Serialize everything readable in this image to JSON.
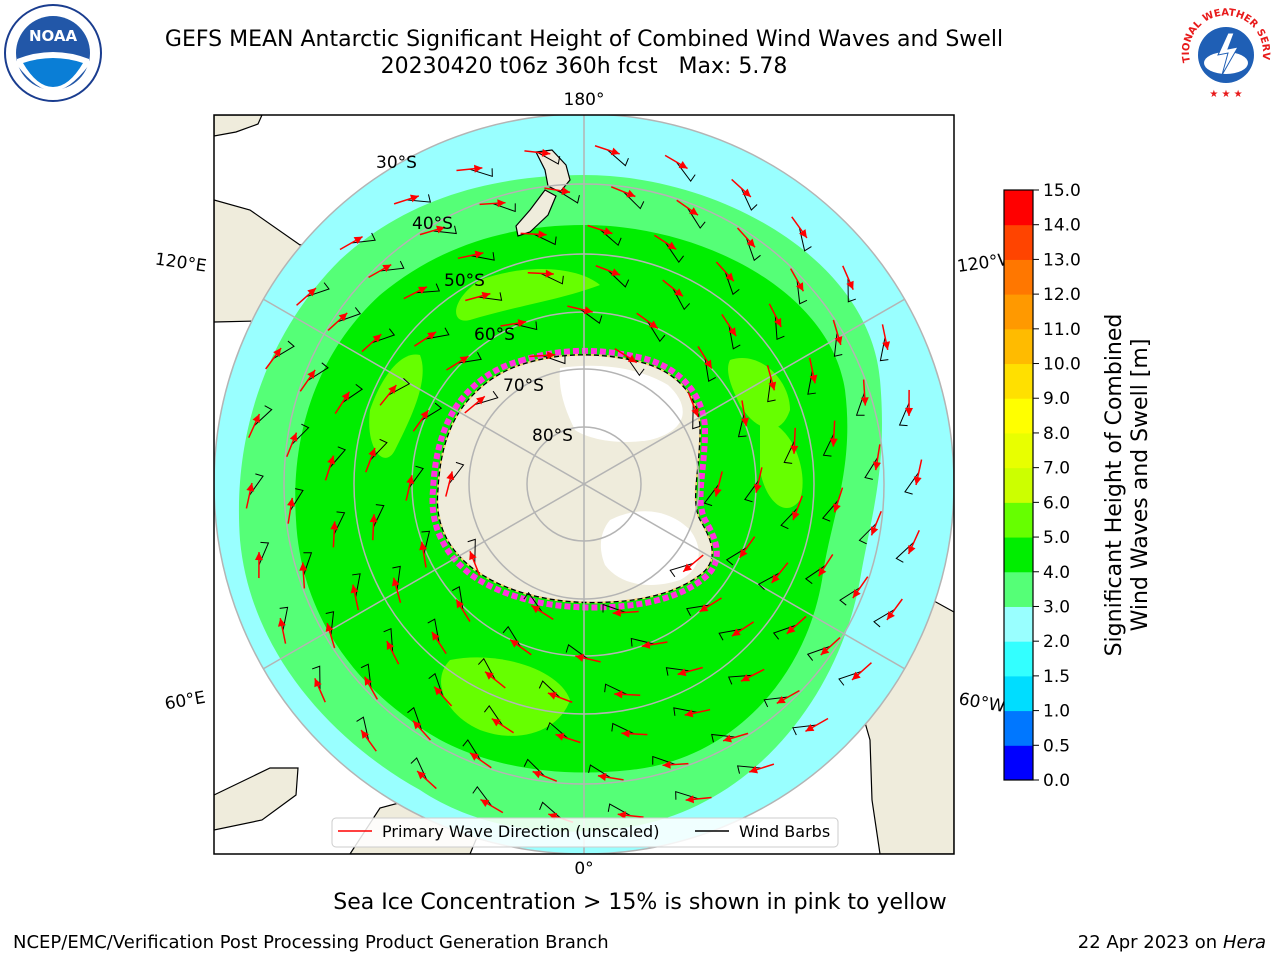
{
  "title_line1": "GEFS MEAN Antarctic Significant Height of Combined Wind Waves and Swell",
  "title_line2": "20230420 t06z 360h fcst   Max: 5.78",
  "map": {
    "meridian_labels": {
      "top": "180°",
      "bottom": "0°",
      "left_upper": "120°E",
      "left_lower": "60°E",
      "right_upper": "120°W",
      "right_lower": "60°W"
    },
    "latitude_labels": [
      "30°S",
      "40°S",
      "50°S",
      "60°S",
      "70°S",
      "80°S"
    ],
    "colors": {
      "land": "#efecdc",
      "ice_pink": "#ff33dd",
      "ice_yellow": "#f2d27a",
      "grid": "#b4b4b4"
    }
  },
  "legend": {
    "primary_wave": "Primary Wave Direction (unscaled)",
    "wind_barbs": "Wind Barbs",
    "primary_wave_color": "#ff0000",
    "wind_barbs_color": "#000000"
  },
  "colorbar": {
    "ticks": [
      "0.0",
      "0.5",
      "1.0",
      "1.5",
      "2.0",
      "3.0",
      "4.0",
      "5.0",
      "6.0",
      "7.0",
      "8.0",
      "9.0",
      "10.0",
      "11.0",
      "12.0",
      "13.0",
      "14.0",
      "15.0"
    ],
    "colors": [
      "#0000ff",
      "#0077ff",
      "#00ddff",
      "#33ffff",
      "#99ffff",
      "#55ff77",
      "#00ee00",
      "#66ff00",
      "#ccff00",
      "#e8ff00",
      "#ffff00",
      "#ffe000",
      "#ffbb00",
      "#ff9900",
      "#ff7700",
      "#ff4400",
      "#ff0000"
    ],
    "label_line1": "Significant Height of Combined",
    "label_line2": "Wind Waves and Swell [m]"
  },
  "ice_note": "Sea Ice Concentration > 15% is shown in pink to yellow",
  "footer_left": "NCEP/EMC/Verification Post Processing Product Generation Branch",
  "footer_right_date": "22 Apr 2023 on ",
  "footer_right_machine": "Hera",
  "logos": {
    "noaa": "NOAA",
    "nws": "NATIONAL WEATHER SERVICE"
  }
}
